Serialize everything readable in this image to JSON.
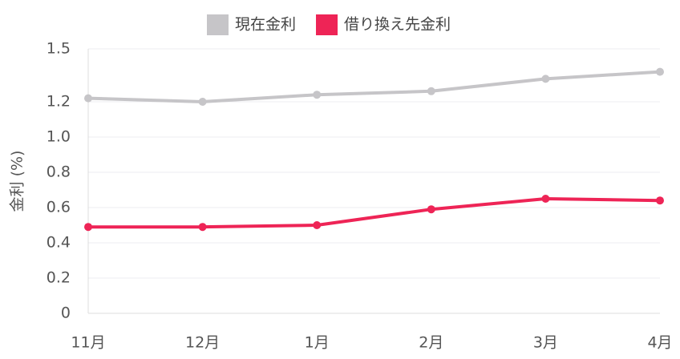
{
  "chart_data": {
    "type": "line",
    "y_label": "金利 (%)",
    "categories": [
      "11月",
      "12月",
      "1月",
      "2月",
      "3月",
      "4月"
    ],
    "series": [
      {
        "name": "現在金利",
        "color": "#c6c5c8",
        "values": [
          1.22,
          1.2,
          1.24,
          1.26,
          1.33,
          1.37
        ]
      },
      {
        "name": "借り換え先金利",
        "color": "#ee2456",
        "values": [
          0.49,
          0.49,
          0.5,
          0.59,
          0.65,
          0.64
        ]
      }
    ],
    "ylim": [
      0,
      1.5
    ],
    "yticks": [
      0,
      0.2,
      0.4,
      0.6,
      0.8,
      {
        "value": 1,
        "label": "1.0"
      },
      1.2,
      1.5
    ],
    "grid": true
  }
}
